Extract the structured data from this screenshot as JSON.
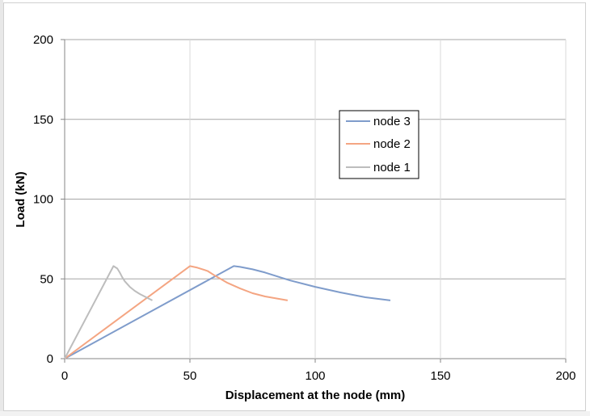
{
  "chart_data": {
    "type": "line",
    "title": "",
    "xlabel": "Displacement at the node (mm)",
    "ylabel": "Load (kN)",
    "xlim": [
      0,
      200
    ],
    "ylim": [
      0,
      200
    ],
    "x_ticks": [
      "0",
      "50",
      "100",
      "150",
      "200"
    ],
    "y_ticks": [
      "0",
      "50",
      "100",
      "150",
      "200"
    ],
    "grid": true,
    "legend_position": "upper-middle-right",
    "series": [
      {
        "name": "node 3",
        "color": "#7f9ccb",
        "x": [
          0,
          67.5,
          70,
          75,
          80,
          90,
          100,
          110,
          120,
          130
        ],
        "y": [
          0,
          58,
          57.5,
          56,
          54,
          49,
          45,
          41.5,
          38.5,
          36.5
        ]
      },
      {
        "name": "node 2",
        "color": "#f4a582",
        "x": [
          0,
          50,
          53,
          57,
          60,
          65,
          70,
          75,
          80,
          89
        ],
        "y": [
          0,
          58,
          57,
          55,
          52,
          47.5,
          44,
          41,
          39,
          36.5
        ]
      },
      {
        "name": "node 1",
        "color": "#bdbdbd",
        "x": [
          0,
          19.5,
          21,
          22,
          23,
          24,
          26,
          28,
          30,
          32.5,
          35
        ],
        "y": [
          0,
          58,
          56.5,
          54,
          51,
          48.5,
          45,
          42.5,
          40.5,
          38.5,
          36.5
        ]
      }
    ]
  }
}
